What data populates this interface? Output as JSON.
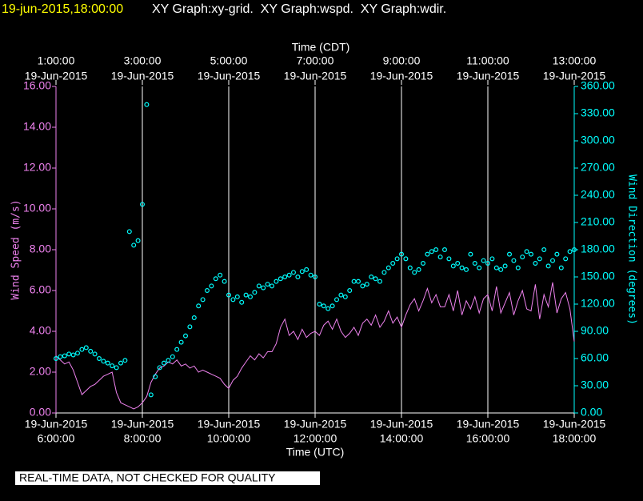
{
  "chart_data": {
    "type": "line",
    "title": "19-jun-2015,18:00:00",
    "subtitle": "XY Graph:xy-grid.  XY Graph:wspd.  XY Graph:wdir.",
    "x2label": "Time (CDT)",
    "xlabel": "Time (UTC)",
    "ylabel": "Wind Speed (m/s)",
    "y2label": "Wind Direction (degrees)",
    "note": "REAL-TIME DATA, NOT CHECKED FOR QUALITY",
    "grid": true,
    "xlim": [
      6,
      18
    ],
    "xticks": [
      {
        "value": 6,
        "date": "19-Jun-2015",
        "label": "6:00:00"
      },
      {
        "value": 8,
        "date": "19-Jun-2015",
        "label": "8:00:00"
      },
      {
        "value": 10,
        "date": "19-Jun-2015",
        "label": "10:00:00"
      },
      {
        "value": 12,
        "date": "19-Jun-2015",
        "label": "12:00:00"
      },
      {
        "value": 14,
        "date": "19-Jun-2015",
        "label": "14:00:00"
      },
      {
        "value": 16,
        "date": "19-Jun-2015",
        "label": "16:00:00"
      },
      {
        "value": 18,
        "date": "19-Jun-2015",
        "label": "18:00:00"
      }
    ],
    "x2ticks": [
      {
        "value": 6,
        "date": "19-Jun-2015",
        "label": "1:00:00"
      },
      {
        "value": 8,
        "date": "19-Jun-2015",
        "label": "3:00:00"
      },
      {
        "value": 10,
        "date": "19-Jun-2015",
        "label": "5:00:00"
      },
      {
        "value": 12,
        "date": "19-Jun-2015",
        "label": "7:00:00"
      },
      {
        "value": 14,
        "date": "19-Jun-2015",
        "label": "9:00:00"
      },
      {
        "value": 16,
        "date": "19-Jun-2015",
        "label": "11:00:00"
      },
      {
        "value": 18,
        "date": "19-Jun-2015",
        "label": "13:00:00"
      }
    ],
    "ylim": [
      0,
      16
    ],
    "yticks": [
      {
        "value": 0,
        "label": "0.00"
      },
      {
        "value": 2,
        "label": "2.00"
      },
      {
        "value": 4,
        "label": "4.00"
      },
      {
        "value": 6,
        "label": "6.00"
      },
      {
        "value": 8,
        "label": "8.00"
      },
      {
        "value": 10,
        "label": "10.00"
      },
      {
        "value": 12,
        "label": "12.00"
      },
      {
        "value": 14,
        "label": "14.00"
      },
      {
        "value": 16,
        "label": "16.00"
      }
    ],
    "y2lim": [
      0,
      360
    ],
    "y2ticks": [
      {
        "value": 0,
        "label": "0.00"
      },
      {
        "value": 30,
        "label": "30.00"
      },
      {
        "value": 60,
        "label": "60.00"
      },
      {
        "value": 90,
        "label": "90.00"
      },
      {
        "value": 120,
        "label": "120.00"
      },
      {
        "value": 150,
        "label": "150.00"
      },
      {
        "value": 180,
        "label": "180.00"
      },
      {
        "value": 210,
        "label": "210.00"
      },
      {
        "value": 240,
        "label": "240.00"
      },
      {
        "value": 270,
        "label": "270.00"
      },
      {
        "value": 300,
        "label": "300.00"
      },
      {
        "value": 330,
        "label": "330.00"
      },
      {
        "value": 360,
        "label": "360.00"
      }
    ],
    "x": [
      6,
      6.1,
      6.2,
      6.3,
      6.4,
      6.5,
      6.6,
      6.7,
      6.8,
      6.9,
      7,
      7.1,
      7.2,
      7.3,
      7.4,
      7.5,
      7.6,
      7.7,
      7.8,
      7.9,
      8,
      8.1,
      8.2,
      8.3,
      8.4,
      8.5,
      8.6,
      8.7,
      8.8,
      8.9,
      9,
      9.1,
      9.2,
      9.3,
      9.4,
      9.5,
      9.6,
      9.7,
      9.8,
      9.9,
      10,
      10.1,
      10.2,
      10.3,
      10.4,
      10.5,
      10.6,
      10.7,
      10.8,
      10.9,
      11,
      11.1,
      11.2,
      11.3,
      11.4,
      11.5,
      11.6,
      11.7,
      11.8,
      11.9,
      12,
      12.1,
      12.2,
      12.3,
      12.4,
      12.5,
      12.6,
      12.7,
      12.8,
      12.9,
      13,
      13.1,
      13.2,
      13.3,
      13.4,
      13.5,
      13.6,
      13.7,
      13.8,
      13.9,
      14,
      14.1,
      14.2,
      14.3,
      14.4,
      14.5,
      14.6,
      14.7,
      14.8,
      14.9,
      15,
      15.1,
      15.2,
      15.3,
      15.4,
      15.5,
      15.6,
      15.7,
      15.8,
      15.9,
      16,
      16.1,
      16.2,
      16.3,
      16.4,
      16.5,
      16.6,
      16.7,
      16.8,
      16.9,
      17,
      17.1,
      17.2,
      17.3,
      17.4,
      17.5,
      17.6,
      17.7,
      17.8,
      17.9,
      18
    ],
    "series": [
      {
        "type": "line",
        "color": "#ee82ee",
        "values": [
          2.8,
          2.6,
          2.4,
          2.5,
          2.1,
          1.5,
          0.9,
          1.1,
          1.3,
          1.4,
          1.6,
          1.8,
          1.9,
          2.0,
          1.0,
          0.5,
          0.4,
          0.3,
          0.2,
          0.3,
          0.5,
          0.8,
          1.5,
          1.9,
          2.2,
          2.3,
          2.5,
          2.4,
          2.6,
          2.3,
          2.4,
          2.2,
          2.3,
          2.0,
          2.1,
          2.0,
          1.9,
          1.8,
          1.7,
          1.4,
          1.2,
          1.6,
          1.8,
          2.2,
          2.5,
          2.8,
          2.6,
          2.9,
          2.7,
          3.0,
          3.0,
          3.4,
          4.2,
          4.6,
          3.8,
          4.0,
          3.6,
          4.1,
          3.7,
          3.9,
          4.0,
          3.8,
          4.3,
          4.5,
          4.1,
          4.6,
          4.0,
          3.7,
          3.9,
          4.2,
          3.8,
          4.4,
          4.6,
          4.3,
          4.8,
          4.2,
          4.5,
          5.0,
          4.4,
          4.7,
          4.2,
          4.8,
          5.3,
          5.6,
          5.0,
          5.5,
          6.1,
          5.4,
          5.8,
          5.2,
          5.2,
          5.8,
          5.0,
          6.0,
          4.8,
          5.5,
          5.1,
          5.7,
          4.9,
          5.6,
          5.8,
          5.0,
          6.2,
          4.9,
          5.4,
          5.9,
          4.8,
          5.5,
          6.0,
          5.1,
          5.0,
          6.3,
          4.6,
          5.8,
          5.2,
          6.4,
          4.9,
          5.6,
          5.9,
          5.1,
          3.5
        ]
      },
      {
        "type": "scatter",
        "axis": "y2",
        "color": "#00ffff",
        "values": [
          60,
          62,
          63,
          65,
          64,
          66,
          70,
          72,
          68,
          65,
          60,
          57,
          55,
          52,
          50,
          55,
          58,
          200,
          185,
          190,
          230,
          340,
          20,
          40,
          50,
          55,
          58,
          62,
          70,
          78,
          85,
          95,
          105,
          118,
          125,
          135,
          140,
          148,
          152,
          145,
          130,
          125,
          128,
          122,
          130,
          128,
          133,
          140,
          138,
          142,
          140,
          145,
          148,
          150,
          152,
          155,
          150,
          156,
          158,
          152,
          150,
          120,
          118,
          115,
          118,
          125,
          130,
          128,
          135,
          145,
          145,
          140,
          142,
          150,
          148,
          145,
          155,
          160,
          165,
          170,
          175,
          170,
          160,
          155,
          158,
          165,
          175,
          178,
          180,
          172,
          180,
          170,
          162,
          165,
          160,
          158,
          175,
          165,
          160,
          168,
          165,
          170,
          160,
          158,
          162,
          175,
          168,
          160,
          172,
          178,
          175,
          165,
          170,
          180,
          162,
          168,
          175,
          160,
          170,
          178,
          180
        ]
      }
    ]
  }
}
